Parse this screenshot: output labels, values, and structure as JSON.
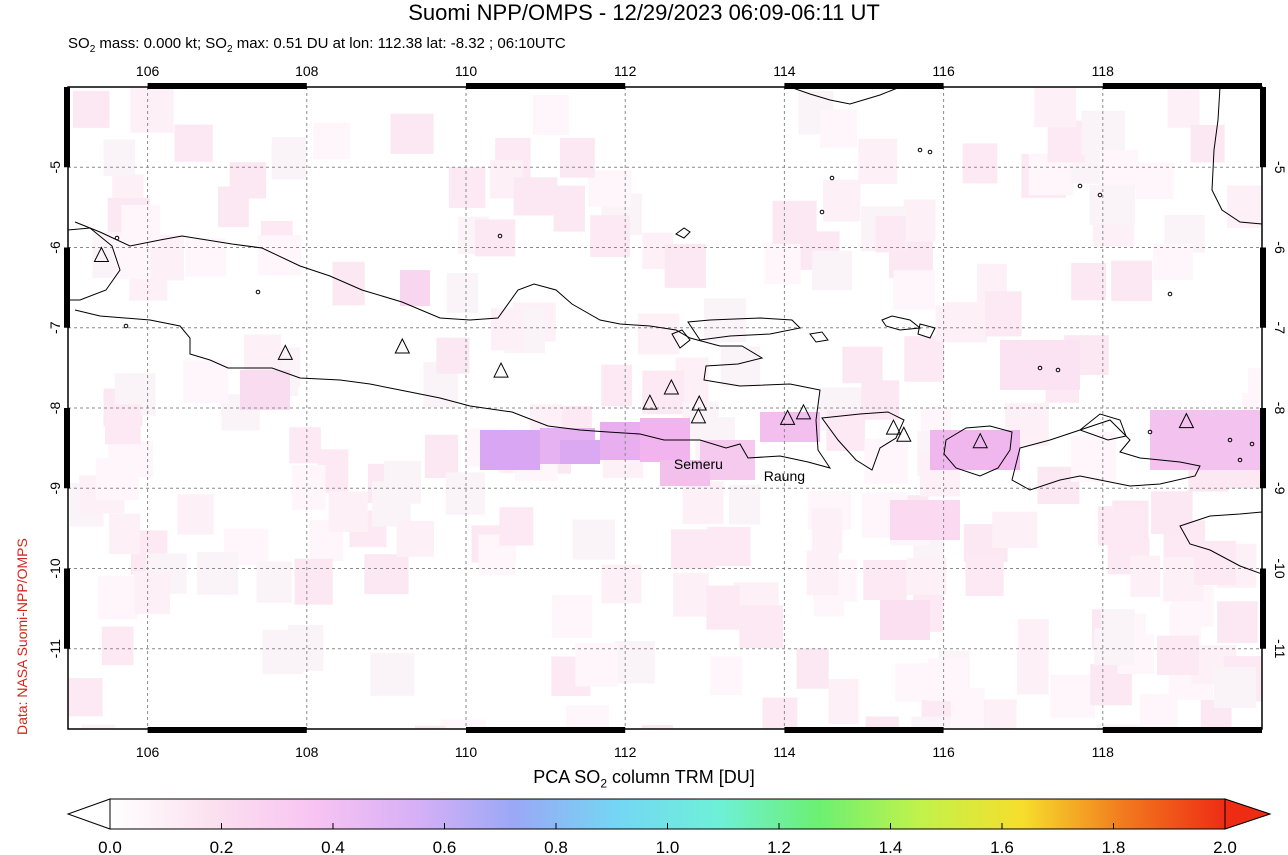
{
  "header": {
    "title": "Suomi NPP/OMPS - 12/29/2023 06:09-06:11 UT",
    "subtitle_pre": "SO",
    "subtitle_sub": "2",
    "subtitle_mid": " mass: 0.000 kt; SO",
    "subtitle_sub2": "2",
    "subtitle_post": " max: 0.51 DU at lon: 112.38 lat: -8.32 ; 06:10UTC"
  },
  "credit": "Data: NASA Suomi-NPP/OMPS",
  "map": {
    "lon_range": [
      105,
      120
    ],
    "lat_range": [
      -12,
      -4
    ],
    "lon_ticks": [
      "106",
      "108",
      "110",
      "112",
      "114",
      "116",
      "118"
    ],
    "lat_ticks": [
      "-5",
      "-6",
      "-7",
      "-8",
      "-9",
      "-10",
      "-11"
    ],
    "volcano_labels": [
      {
        "name": "Semeru",
        "lon": 112.92,
        "lat": -8.7
      },
      {
        "name": "Raung",
        "lon": 114.0,
        "lat": -8.85
      }
    ],
    "volcanoes": [
      {
        "lon": 105.42,
        "lat": -6.1
      },
      {
        "lon": 107.73,
        "lat": -7.32
      },
      {
        "lon": 109.2,
        "lat": -7.24
      },
      {
        "lon": 110.44,
        "lat": -7.54
      },
      {
        "lon": 112.31,
        "lat": -7.94
      },
      {
        "lon": 112.58,
        "lat": -7.75
      },
      {
        "lon": 112.93,
        "lat": -7.95
      },
      {
        "lon": 112.92,
        "lat": -8.11
      },
      {
        "lon": 114.04,
        "lat": -8.13
      },
      {
        "lon": 114.24,
        "lat": -8.06
      },
      {
        "lon": 115.37,
        "lat": -8.25
      },
      {
        "lon": 115.5,
        "lat": -8.34
      },
      {
        "lon": 116.46,
        "lat": -8.42
      },
      {
        "lon": 119.05,
        "lat": -8.17
      }
    ],
    "colors": {
      "coast": "#000000",
      "grid": "#8a8a8a",
      "so2_low": "#fbe3f1",
      "so2_mid": "#f2b4ee",
      "so2_high": "#d9a6f4"
    },
    "so2_max_du": 0.51
  },
  "colorbar": {
    "title_pre": "PCA SO",
    "title_sub": "2",
    "title_post": " column TRM [DU]",
    "ticks": [
      "0.0",
      "0.2",
      "0.4",
      "0.6",
      "0.8",
      "1.0",
      "1.2",
      "1.4",
      "1.6",
      "1.8",
      "2.0"
    ],
    "range": [
      0,
      2
    ],
    "stops": [
      "#ffffff",
      "#fbe1ef",
      "#f8c4f2",
      "#d8b0f6",
      "#9aa8f6",
      "#74d6f4",
      "#6ef0d8",
      "#6cf072",
      "#c2f24a",
      "#f6de2c",
      "#f27a1e",
      "#ee2c14"
    ]
  }
}
